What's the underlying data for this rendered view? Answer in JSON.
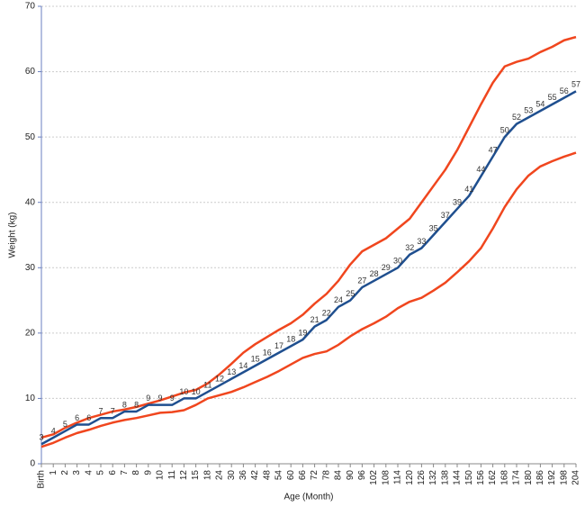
{
  "chart_data": {
    "type": "line",
    "x_label": "Age (Month)",
    "y_label": "Weight (kg)",
    "categories": [
      "Birth",
      "1",
      "2",
      "3",
      "4",
      "5",
      "6",
      "7",
      "8",
      "9",
      "10",
      "11",
      "12",
      "15",
      "18",
      "24",
      "30",
      "36",
      "42",
      "48",
      "54",
      "60",
      "66",
      "72",
      "78",
      "84",
      "90",
      "96",
      "102",
      "108",
      "114",
      "120",
      "126",
      "132",
      "138",
      "144",
      "150",
      "156",
      "162",
      "168",
      "174",
      "180",
      "186",
      "192",
      "198",
      "204"
    ],
    "ylim": [
      0,
      70
    ],
    "yticks": [
      0,
      10,
      20,
      30,
      40,
      50,
      60,
      70
    ],
    "grid": true,
    "series": [
      {
        "color": "#f0461e",
        "values": [
          4,
          4.5,
          5.5,
          6.3,
          7,
          7.5,
          8,
          8.3,
          8.7,
          9.2,
          9.7,
          10.3,
          10.9,
          11.3,
          12.3,
          13.7,
          15.3,
          17,
          18.3,
          19.4,
          20.5,
          21.5,
          22.8,
          24.5,
          26,
          28,
          30.5,
          32.5,
          33.5,
          34.5,
          36,
          37.5,
          40,
          42.5,
          45,
          48,
          51.5,
          55,
          58.3,
          60.8,
          61.5,
          62,
          63,
          63.8,
          64.8,
          65.3
        ]
      },
      {
        "color": "#1f4f8f",
        "data_labels": true,
        "values": [
          3,
          4,
          5,
          6,
          6,
          7,
          7,
          8,
          8,
          9,
          9,
          9,
          10,
          10,
          11,
          12,
          13,
          14,
          15,
          16,
          17,
          18,
          19,
          21,
          22,
          24,
          25,
          27,
          28,
          29,
          30,
          32,
          33,
          35,
          37,
          39,
          41,
          44,
          47,
          50,
          52,
          53,
          54,
          55,
          56,
          57
        ]
      },
      {
        "color": "#f0461e",
        "values": [
          2.6,
          3.2,
          4,
          4.7,
          5.2,
          5.8,
          6.3,
          6.7,
          7,
          7.4,
          7.8,
          7.9,
          8.2,
          9,
          10,
          10.5,
          11,
          11.7,
          12.5,
          13.3,
          14.2,
          15.2,
          16.2,
          16.8,
          17.2,
          18.2,
          19.5,
          20.6,
          21.5,
          22.5,
          23.8,
          24.8,
          25.4,
          26.5,
          27.7,
          29.3,
          31,
          33,
          36,
          39.3,
          42,
          44.1,
          45.5,
          46.3,
          47,
          47.6
        ]
      }
    ]
  }
}
